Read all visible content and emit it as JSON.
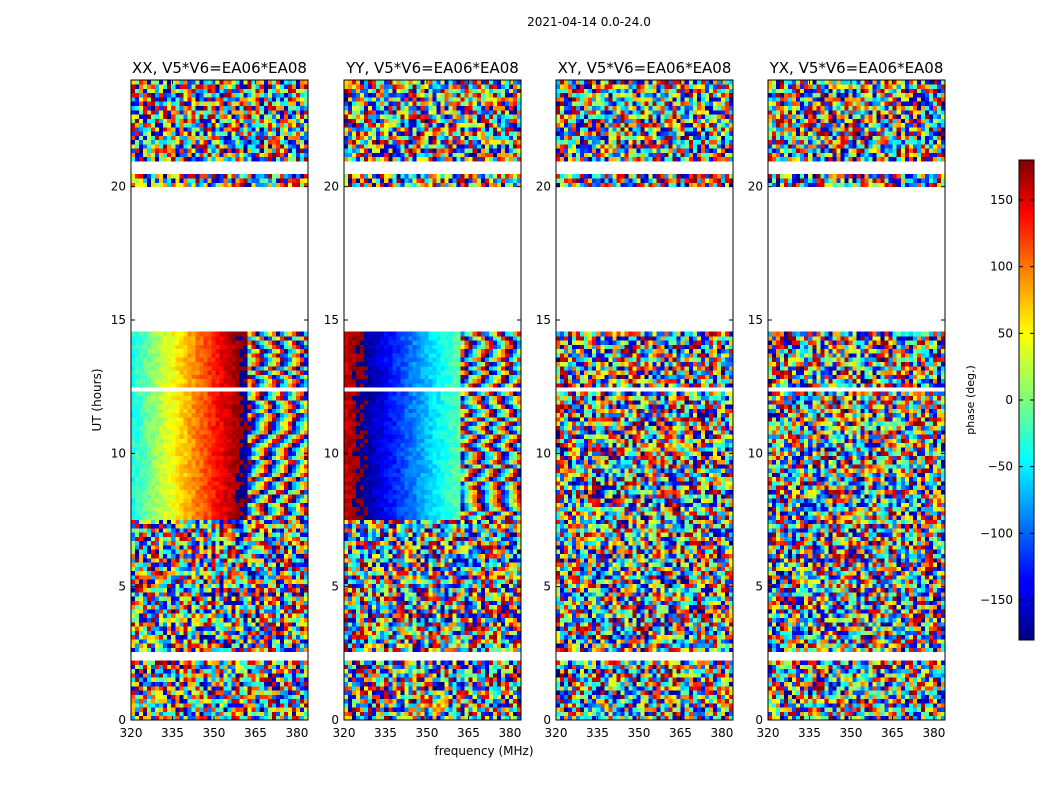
{
  "chart_data": {
    "type": "heatmap",
    "suptitle": "2021-04-14 0.0-24.0",
    "xlabel": "frequency (MHz)",
    "ylabel": "UT (hours)",
    "xlim": [
      320,
      384
    ],
    "ylim": [
      0,
      24
    ],
    "xticks": [
      320,
      335,
      350,
      365,
      380
    ],
    "yticks": [
      0,
      5,
      10,
      15,
      20
    ],
    "panels": [
      {
        "title": "XX, V5*V6=EA06*EA08",
        "pol": "XX"
      },
      {
        "title": "YY, V5*V6=EA06*EA08",
        "pol": "YY"
      },
      {
        "title": "XY, V5*V6=EA06*EA08",
        "pol": "XY"
      },
      {
        "title": "YX, V5*V6=EA06*EA08",
        "pol": "YX"
      }
    ],
    "colorbar": {
      "label": "phase (deg.)",
      "range": [
        -180,
        180
      ],
      "ticks": [
        -150,
        -100,
        -50,
        0,
        50,
        100,
        150
      ],
      "colormap": "jet"
    },
    "data_gaps_hours": [
      [
        2.3,
        2.5
      ],
      [
        7.5,
        7.6
      ],
      [
        8.6,
        8.7
      ],
      [
        12.3,
        12.5
      ],
      [
        14.6,
        20.0
      ],
      [
        20.5,
        21.0
      ],
      [
        21.9,
        22.0
      ],
      [
        23.0,
        23.1
      ]
    ]
  }
}
